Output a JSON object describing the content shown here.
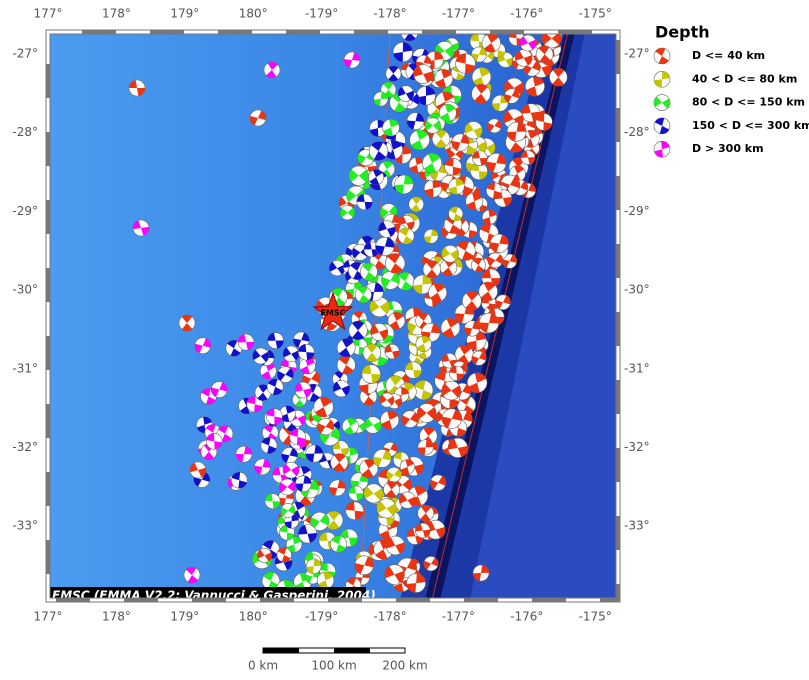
{
  "map": {
    "lon_labels": [
      "177°",
      "178°",
      "179°",
      "180°",
      "-179°",
      "-178°",
      "-177°",
      "-176°",
      "-175°"
    ],
    "lat_labels": [
      "-27°",
      "-28°",
      "-29°",
      "-30°",
      "-31°",
      "-32°",
      "-33°"
    ],
    "credit": "EMSC (EMMA V2.2; Vannucci & Gasperini, 2004)",
    "epicenter_label": "EMSC"
  },
  "legend": {
    "title": "Depth",
    "items": [
      {
        "label": "D <= 40 km",
        "color": "#ee3311"
      },
      {
        "label": "40 < D <= 80 km",
        "color": "#c4c400"
      },
      {
        "label": "80 < D <= 150 km",
        "color": "#22ee22"
      },
      {
        "label": "150 < D <= 300 km",
        "color": "#1111cc"
      },
      {
        "label": "D > 300 km",
        "color": "#ff00ff"
      }
    ]
  },
  "scale_bar": {
    "labels": [
      "0 km",
      "100 km",
      "200 km"
    ]
  }
}
